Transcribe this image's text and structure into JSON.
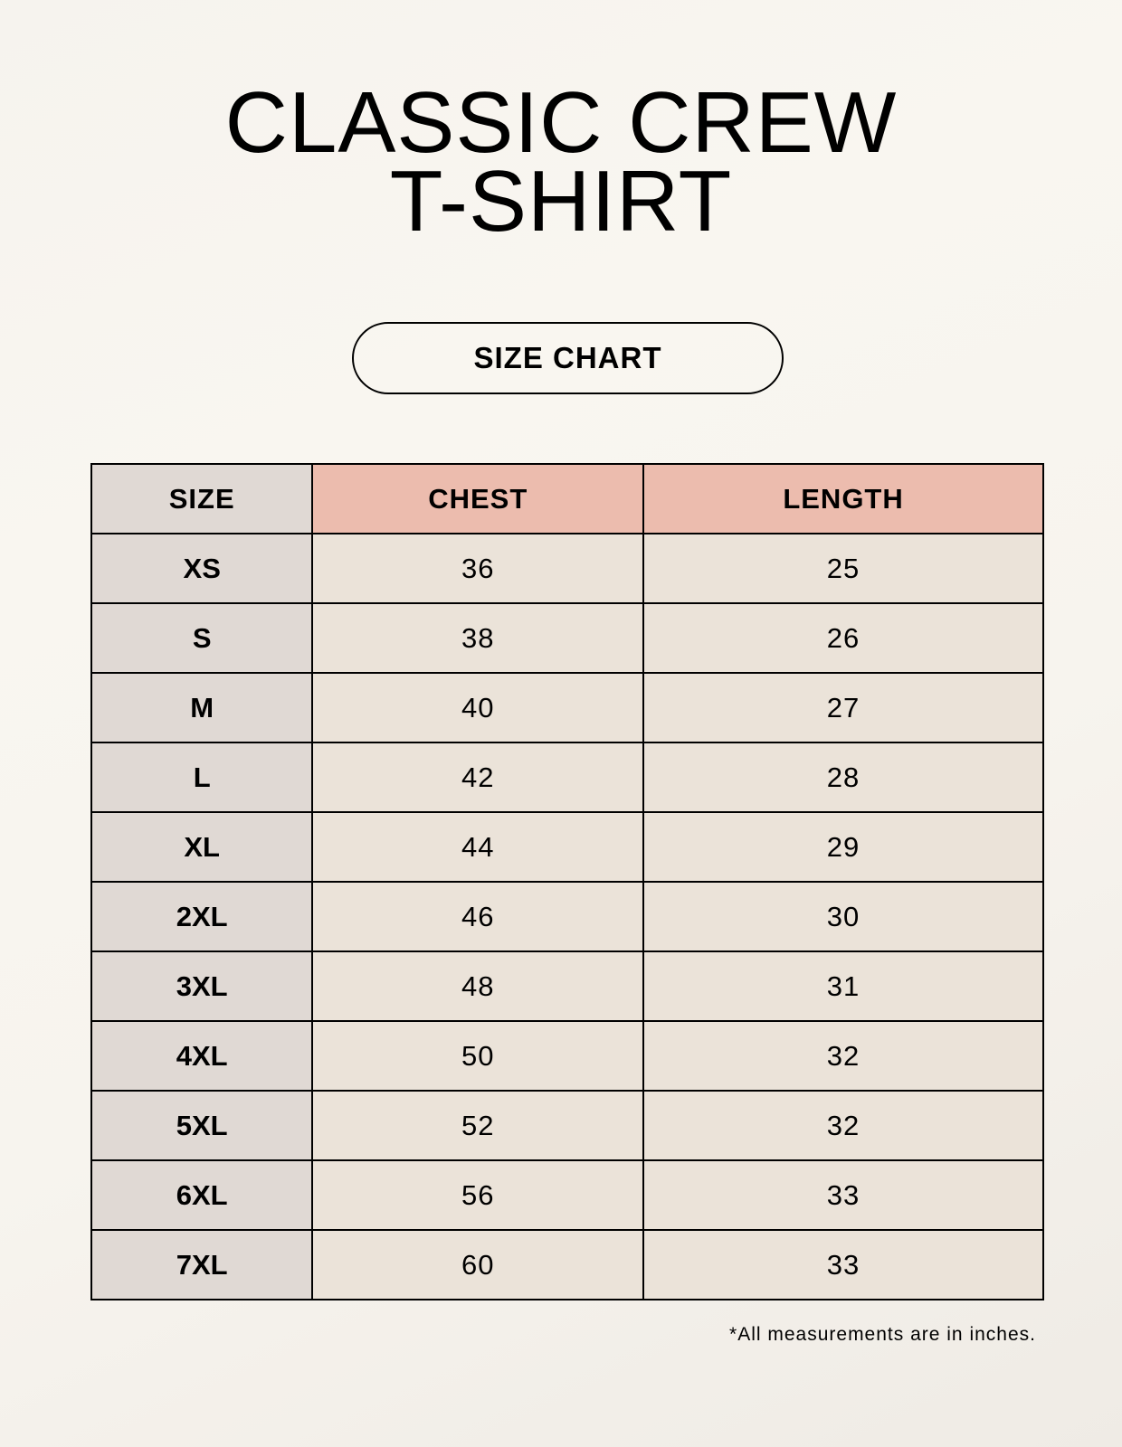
{
  "title_line1": "CLASSIC CREW",
  "title_line2": "T-SHIRT",
  "badge": "SIZE CHART",
  "colors": {
    "size_column": "#e0d9d4",
    "header_highlight": "#ecbcae",
    "cells": "#ebe3d9",
    "background": "#f8f5ef"
  },
  "table": {
    "headers": [
      "SIZE",
      "CHEST",
      "LENGTH"
    ],
    "rows": [
      [
        "XS",
        "36",
        "25"
      ],
      [
        "S",
        "38",
        "26"
      ],
      [
        "M",
        "40",
        "27"
      ],
      [
        "L",
        "42",
        "28"
      ],
      [
        "XL",
        "44",
        "29"
      ],
      [
        "2XL",
        "46",
        "30"
      ],
      [
        "3XL",
        "48",
        "31"
      ],
      [
        "4XL",
        "50",
        "32"
      ],
      [
        "5XL",
        "52",
        "32"
      ],
      [
        "6XL",
        "56",
        "33"
      ],
      [
        "7XL",
        "60",
        "33"
      ]
    ]
  },
  "footnote": "*All measurements are in inches."
}
